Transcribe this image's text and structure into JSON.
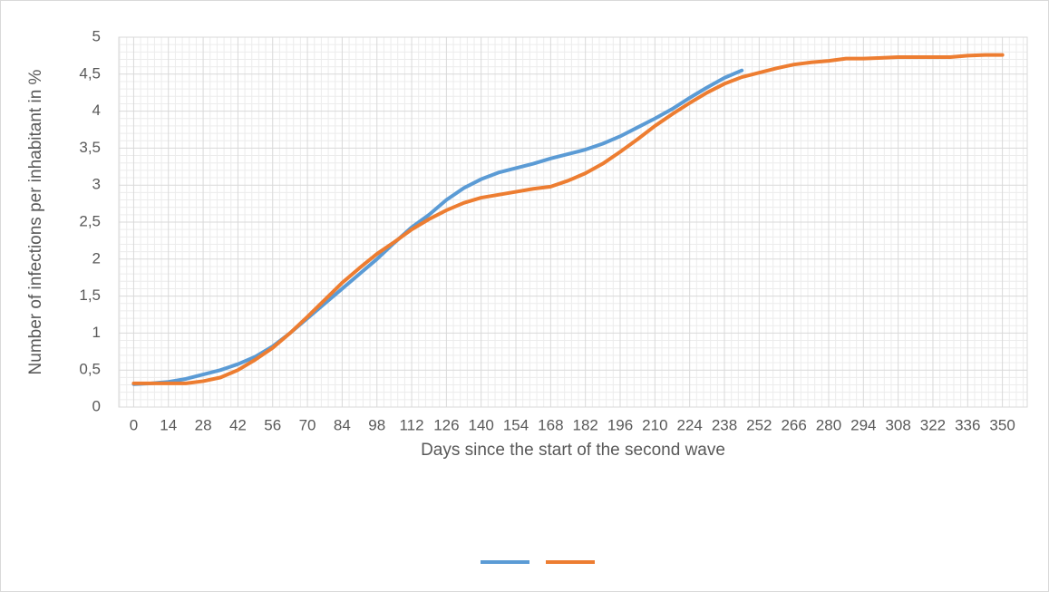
{
  "chart_data": {
    "type": "line",
    "x_label": "Days since the start of the second wave",
    "y_label": "Number of infections per inhabitant in %",
    "x": [
      0,
      7,
      14,
      21,
      28,
      35,
      42,
      49,
      56,
      63,
      70,
      77,
      84,
      91,
      98,
      105,
      112,
      119,
      126,
      133,
      140,
      147,
      154,
      161,
      168,
      175,
      182,
      189,
      196,
      203,
      210,
      217,
      224,
      231,
      238,
      245,
      252,
      259,
      266,
      273,
      280,
      287,
      294,
      301,
      308,
      315,
      322,
      329,
      336,
      343,
      350
    ],
    "series": [
      {
        "color": "#5b9bd5",
        "values": [
          0.31,
          0.32,
          0.34,
          0.38,
          0.44,
          0.5,
          0.58,
          0.68,
          0.82,
          1.0,
          1.2,
          1.4,
          1.6,
          1.8,
          2.0,
          2.22,
          2.43,
          2.6,
          2.8,
          2.96,
          3.08,
          3.17,
          3.23,
          3.29,
          3.36,
          3.42,
          3.48,
          3.56,
          3.66,
          3.78,
          3.9,
          4.03,
          4.18,
          4.32,
          4.45,
          4.55,
          null,
          null,
          null,
          null,
          null,
          null,
          null,
          null,
          null,
          null,
          null,
          null,
          null,
          null,
          null
        ]
      },
      {
        "color": "#ed7d31",
        "values": [
          0.32,
          0.32,
          0.32,
          0.32,
          0.35,
          0.4,
          0.5,
          0.64,
          0.8,
          1.0,
          1.22,
          1.45,
          1.68,
          1.88,
          2.07,
          2.23,
          2.4,
          2.54,
          2.66,
          2.76,
          2.83,
          2.87,
          2.91,
          2.95,
          2.98,
          3.06,
          3.16,
          3.29,
          3.45,
          3.62,
          3.8,
          3.96,
          4.11,
          4.25,
          4.37,
          4.46,
          4.52,
          4.58,
          4.63,
          4.66,
          4.68,
          4.71,
          4.71,
          4.72,
          4.73,
          4.73,
          4.73,
          4.73,
          4.75,
          4.76,
          4.76
        ]
      }
    ],
    "xlim": [
      -6,
      360
    ],
    "xticks": [
      0,
      14,
      28,
      42,
      56,
      70,
      84,
      98,
      112,
      126,
      140,
      154,
      168,
      182,
      196,
      210,
      224,
      238,
      252,
      266,
      280,
      294,
      308,
      322,
      336,
      350
    ],
    "ylim": [
      0,
      5
    ],
    "yticks": [
      0,
      {
        "value": 0.5,
        "label": "0,5"
      },
      1,
      {
        "value": 1.5,
        "label": "1,5"
      },
      2,
      {
        "value": 2.5,
        "label": "2,5"
      },
      3,
      {
        "value": 3.5,
        "label": "3,5"
      },
      4,
      {
        "value": 4.5,
        "label": "4,5"
      },
      5
    ],
    "grid": true,
    "minor_grid": true,
    "legend": "bottom"
  }
}
